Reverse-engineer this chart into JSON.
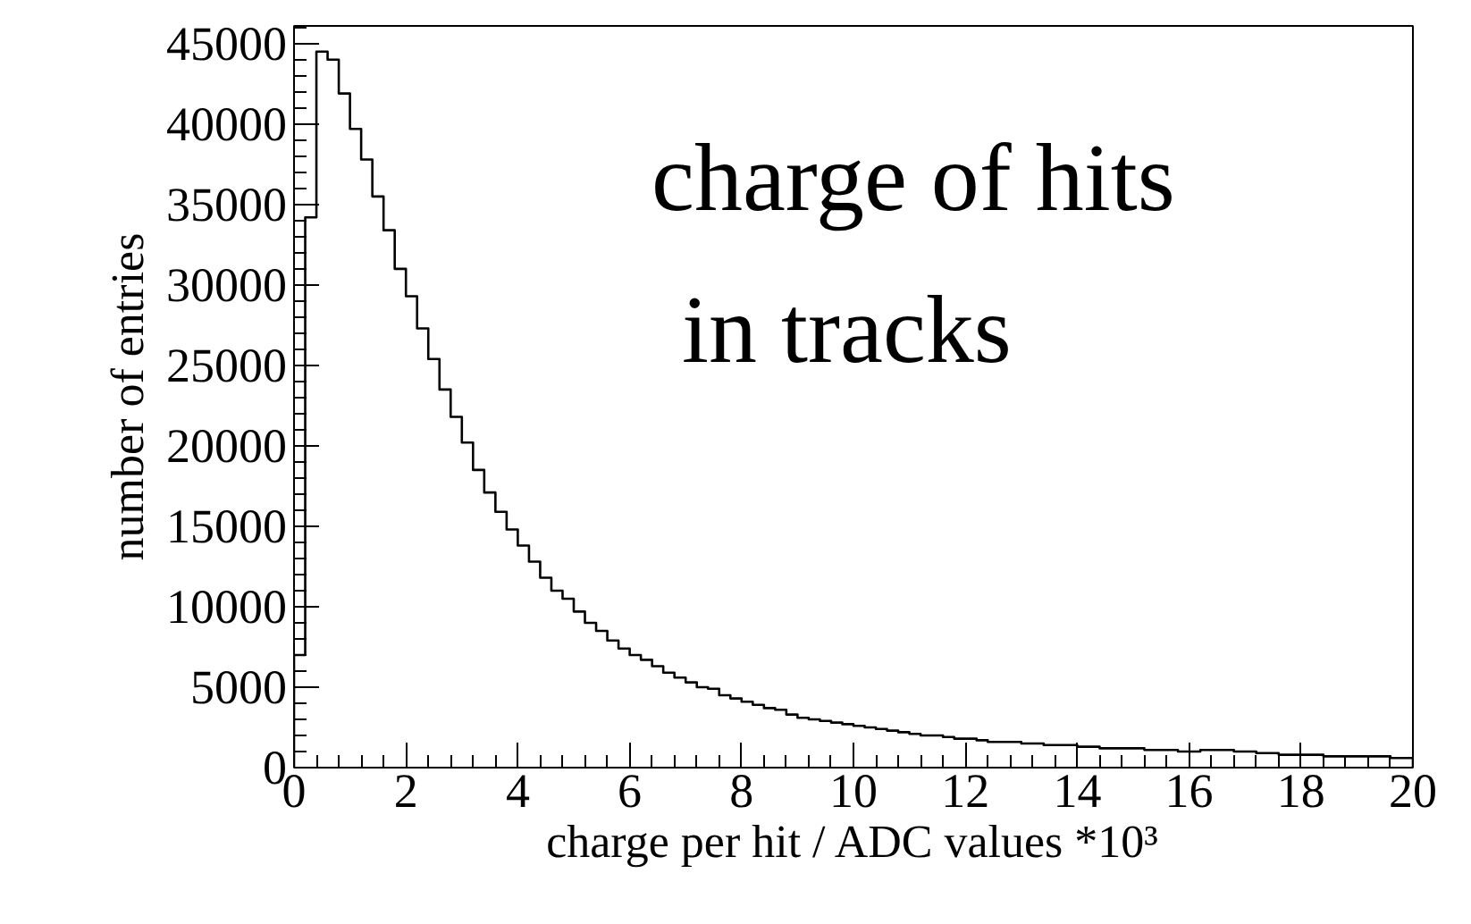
{
  "chart_data": {
    "type": "histogram",
    "xlabel": "charge per hit / ADC values *10³",
    "ylabel": "number of entries",
    "annotations": [
      "charge of hits",
      "in tracks"
    ],
    "bins": [
      0,
      0.2,
      0.4,
      0.6,
      0.8,
      1,
      1.2,
      1.4,
      1.6,
      1.8,
      2,
      2.2,
      2.4,
      2.6,
      2.8,
      3,
      3.2,
      3.4,
      3.6,
      3.8,
      4,
      4.2,
      4.4,
      4.6,
      4.8,
      5,
      5.2,
      5.4,
      5.6,
      5.8,
      6,
      6.2,
      6.4,
      6.6,
      6.8,
      7,
      7.2,
      7.4,
      7.6,
      7.8,
      8,
      8.2,
      8.4,
      8.6,
      8.8,
      9,
      9.2,
      9.4,
      9.6,
      9.8,
      10,
      10.2,
      10.4,
      10.6,
      10.8,
      11,
      11.2,
      11.4,
      11.6,
      11.8,
      12,
      12.2,
      12.4,
      12.6,
      12.8,
      13,
      13.2,
      13.4,
      13.6,
      13.8,
      14,
      14.2,
      14.4,
      14.6,
      14.8,
      15,
      15.2,
      15.4,
      15.6,
      15.8,
      16,
      16.2,
      16.4,
      16.6,
      16.8,
      17,
      17.2,
      17.4,
      17.6,
      17.8,
      18,
      18.2,
      18.4,
      18.6,
      18.8,
      19,
      19.2,
      19.4,
      19.6,
      19.8,
      20
    ],
    "values": [
      7000,
      34200,
      44500,
      44000,
      41900,
      39700,
      37800,
      35500,
      33400,
      31000,
      29300,
      27300,
      25400,
      23500,
      21800,
      20200,
      18500,
      17100,
      15900,
      14800,
      13800,
      12800,
      11800,
      11000,
      10500,
      9700,
      9000,
      8500,
      7900,
      7400,
      7000,
      6700,
      6300,
      5900,
      5600,
      5300,
      5000,
      4900,
      4500,
      4300,
      4100,
      3900,
      3700,
      3600,
      3300,
      3100,
      3000,
      2900,
      2800,
      2700,
      2600,
      2500,
      2400,
      2300,
      2200,
      2100,
      2000,
      2000,
      1900,
      1800,
      1800,
      1700,
      1600,
      1600,
      1600,
      1500,
      1500,
      1400,
      1400,
      1400,
      1300,
      1300,
      1200,
      1200,
      1200,
      1200,
      1100,
      1100,
      1100,
      1000,
      1000,
      1100,
      1100,
      1100,
      1000,
      1000,
      900,
      900,
      800,
      800,
      800,
      800,
      700,
      700,
      700,
      700,
      700,
      700,
      600,
      600
    ],
    "color": "#000000",
    "xlim": [
      0,
      20
    ],
    "xticks": [
      0,
      2,
      4,
      6,
      8,
      10,
      12,
      14,
      16,
      18,
      20
    ],
    "ylim": [
      0,
      46100
    ],
    "yticks": [
      0,
      5000,
      10000,
      15000,
      20000,
      25000,
      30000,
      35000,
      40000,
      45000
    ],
    "grid": false
  }
}
